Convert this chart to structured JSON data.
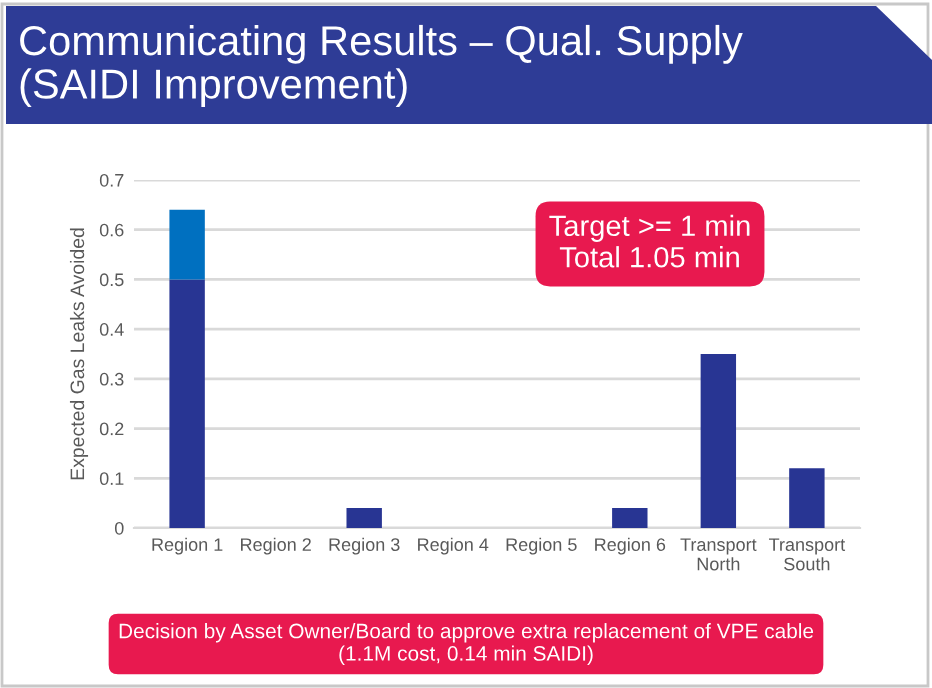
{
  "chart_data": {
    "type": "bar",
    "title": "Communicating Results – Qual. Supply\n(SAIDI Improvement)",
    "ylabel": "Expected Gas Leaks Avoided",
    "categories": [
      "Region 1",
      "Region 2",
      "Region 3",
      "Region 4",
      "Region 5",
      "Region 6",
      "Transport\nNorth",
      "Transport\nSouth"
    ],
    "series": [
      {
        "color": "#283593",
        "values": [
          0.5,
          0,
          0.04,
          0,
          0,
          0.04,
          0.35,
          0.12
        ]
      },
      {
        "color": "#0070c0",
        "values": [
          0.14,
          null,
          null,
          null,
          null,
          null,
          null,
          null
        ]
      }
    ],
    "stacked": true,
    "ylim": [
      0,
      0.7
    ],
    "yticks": [
      0,
      0.1,
      0.2,
      0.3,
      0.4,
      0.5,
      0.6,
      0.7
    ],
    "grid": "y",
    "legend": false,
    "annotations": [
      "Target >= 1 min\nTotal 1.05 min",
      "Decision by Asset Owner/Board to approve extra replacement of VPE cable\n(1.1M cost, 0.14 min SAIDI)"
    ]
  }
}
